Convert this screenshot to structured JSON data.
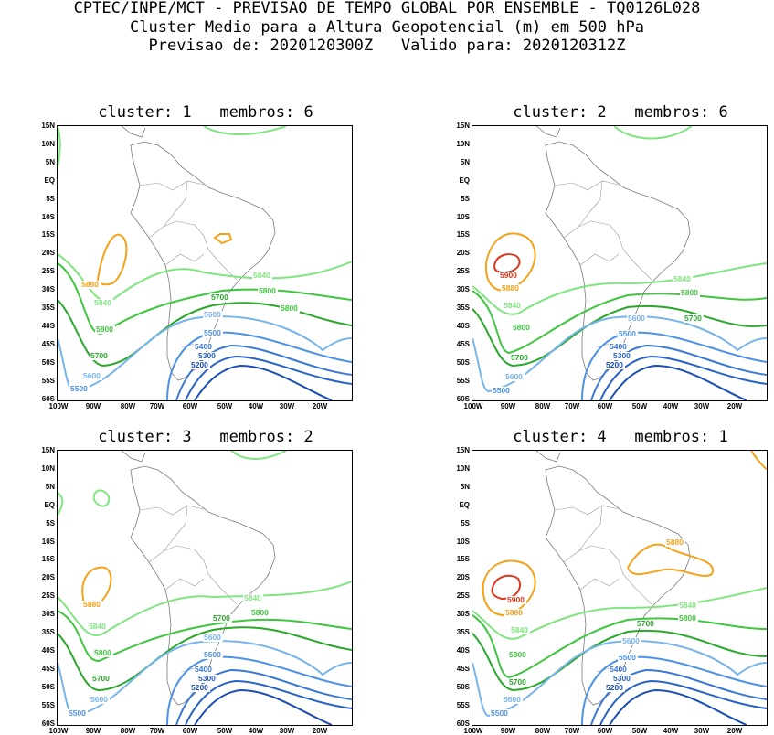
{
  "header": {
    "line1": "CPTEC/INPE/MCT - PREVISAO DE TEMPO GLOBAL POR ENSEMBLE - TQ0126L028",
    "line2": "Cluster Medio para a Altura Geopotencial (m) em 500 hPa",
    "line3": "Previsao de: 2020120300Z   Valido para: 2020120312Z"
  },
  "axes": {
    "lat_labels": [
      "15N",
      "10N",
      "5N",
      "EQ",
      "5S",
      "10S",
      "15S",
      "20S",
      "25S",
      "30S",
      "35S",
      "40S",
      "45S",
      "50S",
      "55S",
      "60S"
    ],
    "lon_labels": [
      "100W",
      "90W",
      "80W",
      "70W",
      "60W",
      "50W",
      "40W",
      "30W",
      "20W"
    ]
  },
  "colors": {
    "c5200": "#1b4fb5",
    "c5300": "#2a63c7",
    "c5400": "#3a78d6",
    "c5500": "#4c92e6",
    "c5600": "#78b4ee",
    "c5700": "#2aa82a",
    "c5800": "#3ec63e",
    "c5840": "#7fe67f",
    "c5880": "#f5a21b",
    "c5900": "#e0351b",
    "land": "#7a7a7a"
  },
  "panels": [
    {
      "title": "cluster: 1   membros: 6",
      "labels": [
        {
          "text": "5880",
          "c": "c5880"
        },
        {
          "text": "5840",
          "c": "c5840"
        },
        {
          "text": "5800",
          "c": "c5800"
        },
        {
          "text": "5840",
          "c": "c5840"
        },
        {
          "text": "5800",
          "c": "c5800"
        },
        {
          "text": "5700",
          "c": "c5700"
        },
        {
          "text": "5800",
          "c": "c5800"
        },
        {
          "text": "5700",
          "c": "c5700"
        },
        {
          "text": "5600",
          "c": "c5600"
        },
        {
          "text": "5500",
          "c": "c5500"
        },
        {
          "text": "5400",
          "c": "c5400"
        },
        {
          "text": "5300",
          "c": "c5300"
        },
        {
          "text": "5200",
          "c": "c5200"
        },
        {
          "text": "5600",
          "c": "c5600"
        },
        {
          "text": "5500",
          "c": "c5500"
        }
      ]
    },
    {
      "title": "cluster: 2   membros: 6",
      "labels": [
        {
          "text": "5900",
          "c": "c5900"
        },
        {
          "text": "5880",
          "c": "c5880"
        },
        {
          "text": "5840",
          "c": "c5840"
        },
        {
          "text": "5840",
          "c": "c5840"
        },
        {
          "text": "5800",
          "c": "c5800"
        },
        {
          "text": "5700",
          "c": "c5700"
        },
        {
          "text": "5800",
          "c": "c5800"
        },
        {
          "text": "5700",
          "c": "c5700"
        },
        {
          "text": "5600",
          "c": "c5600"
        },
        {
          "text": "5500",
          "c": "c5500"
        },
        {
          "text": "5400",
          "c": "c5400"
        },
        {
          "text": "5300",
          "c": "c5300"
        },
        {
          "text": "5200",
          "c": "c5200"
        },
        {
          "text": "5600",
          "c": "c5600"
        },
        {
          "text": "5500",
          "c": "c5500"
        }
      ]
    },
    {
      "title": "cluster: 3   membros: 2",
      "labels": [
        {
          "text": "5880",
          "c": "c5880"
        },
        {
          "text": "5840",
          "c": "c5840"
        },
        {
          "text": "5800",
          "c": "c5800"
        },
        {
          "text": "5840",
          "c": "c5840"
        },
        {
          "text": "5800",
          "c": "c5800"
        },
        {
          "text": "5700",
          "c": "c5700"
        },
        {
          "text": "5700",
          "c": "c5700"
        },
        {
          "text": "5600",
          "c": "c5600"
        },
        {
          "text": "5500",
          "c": "c5500"
        },
        {
          "text": "5400",
          "c": "c5400"
        },
        {
          "text": "5300",
          "c": "c5300"
        },
        {
          "text": "5200",
          "c": "c5200"
        },
        {
          "text": "5600",
          "c": "c5600"
        },
        {
          "text": "5500",
          "c": "c5500"
        }
      ]
    },
    {
      "title": "cluster: 4   membros: 1",
      "labels": [
        {
          "text": "5880",
          "c": "c5880"
        },
        {
          "text": "5900",
          "c": "c5900"
        },
        {
          "text": "5880",
          "c": "c5880"
        },
        {
          "text": "5840",
          "c": "c5840"
        },
        {
          "text": "5840",
          "c": "c5840"
        },
        {
          "text": "5800",
          "c": "c5800"
        },
        {
          "text": "5700",
          "c": "c5700"
        },
        {
          "text": "5800",
          "c": "c5800"
        },
        {
          "text": "5700",
          "c": "c5700"
        },
        {
          "text": "5600",
          "c": "c5600"
        },
        {
          "text": "5500",
          "c": "c5500"
        },
        {
          "text": "5400",
          "c": "c5400"
        },
        {
          "text": "5300",
          "c": "c5300"
        },
        {
          "text": "5200",
          "c": "c5200"
        },
        {
          "text": "5600",
          "c": "c5600"
        },
        {
          "text": "5500",
          "c": "c5500"
        }
      ]
    }
  ]
}
